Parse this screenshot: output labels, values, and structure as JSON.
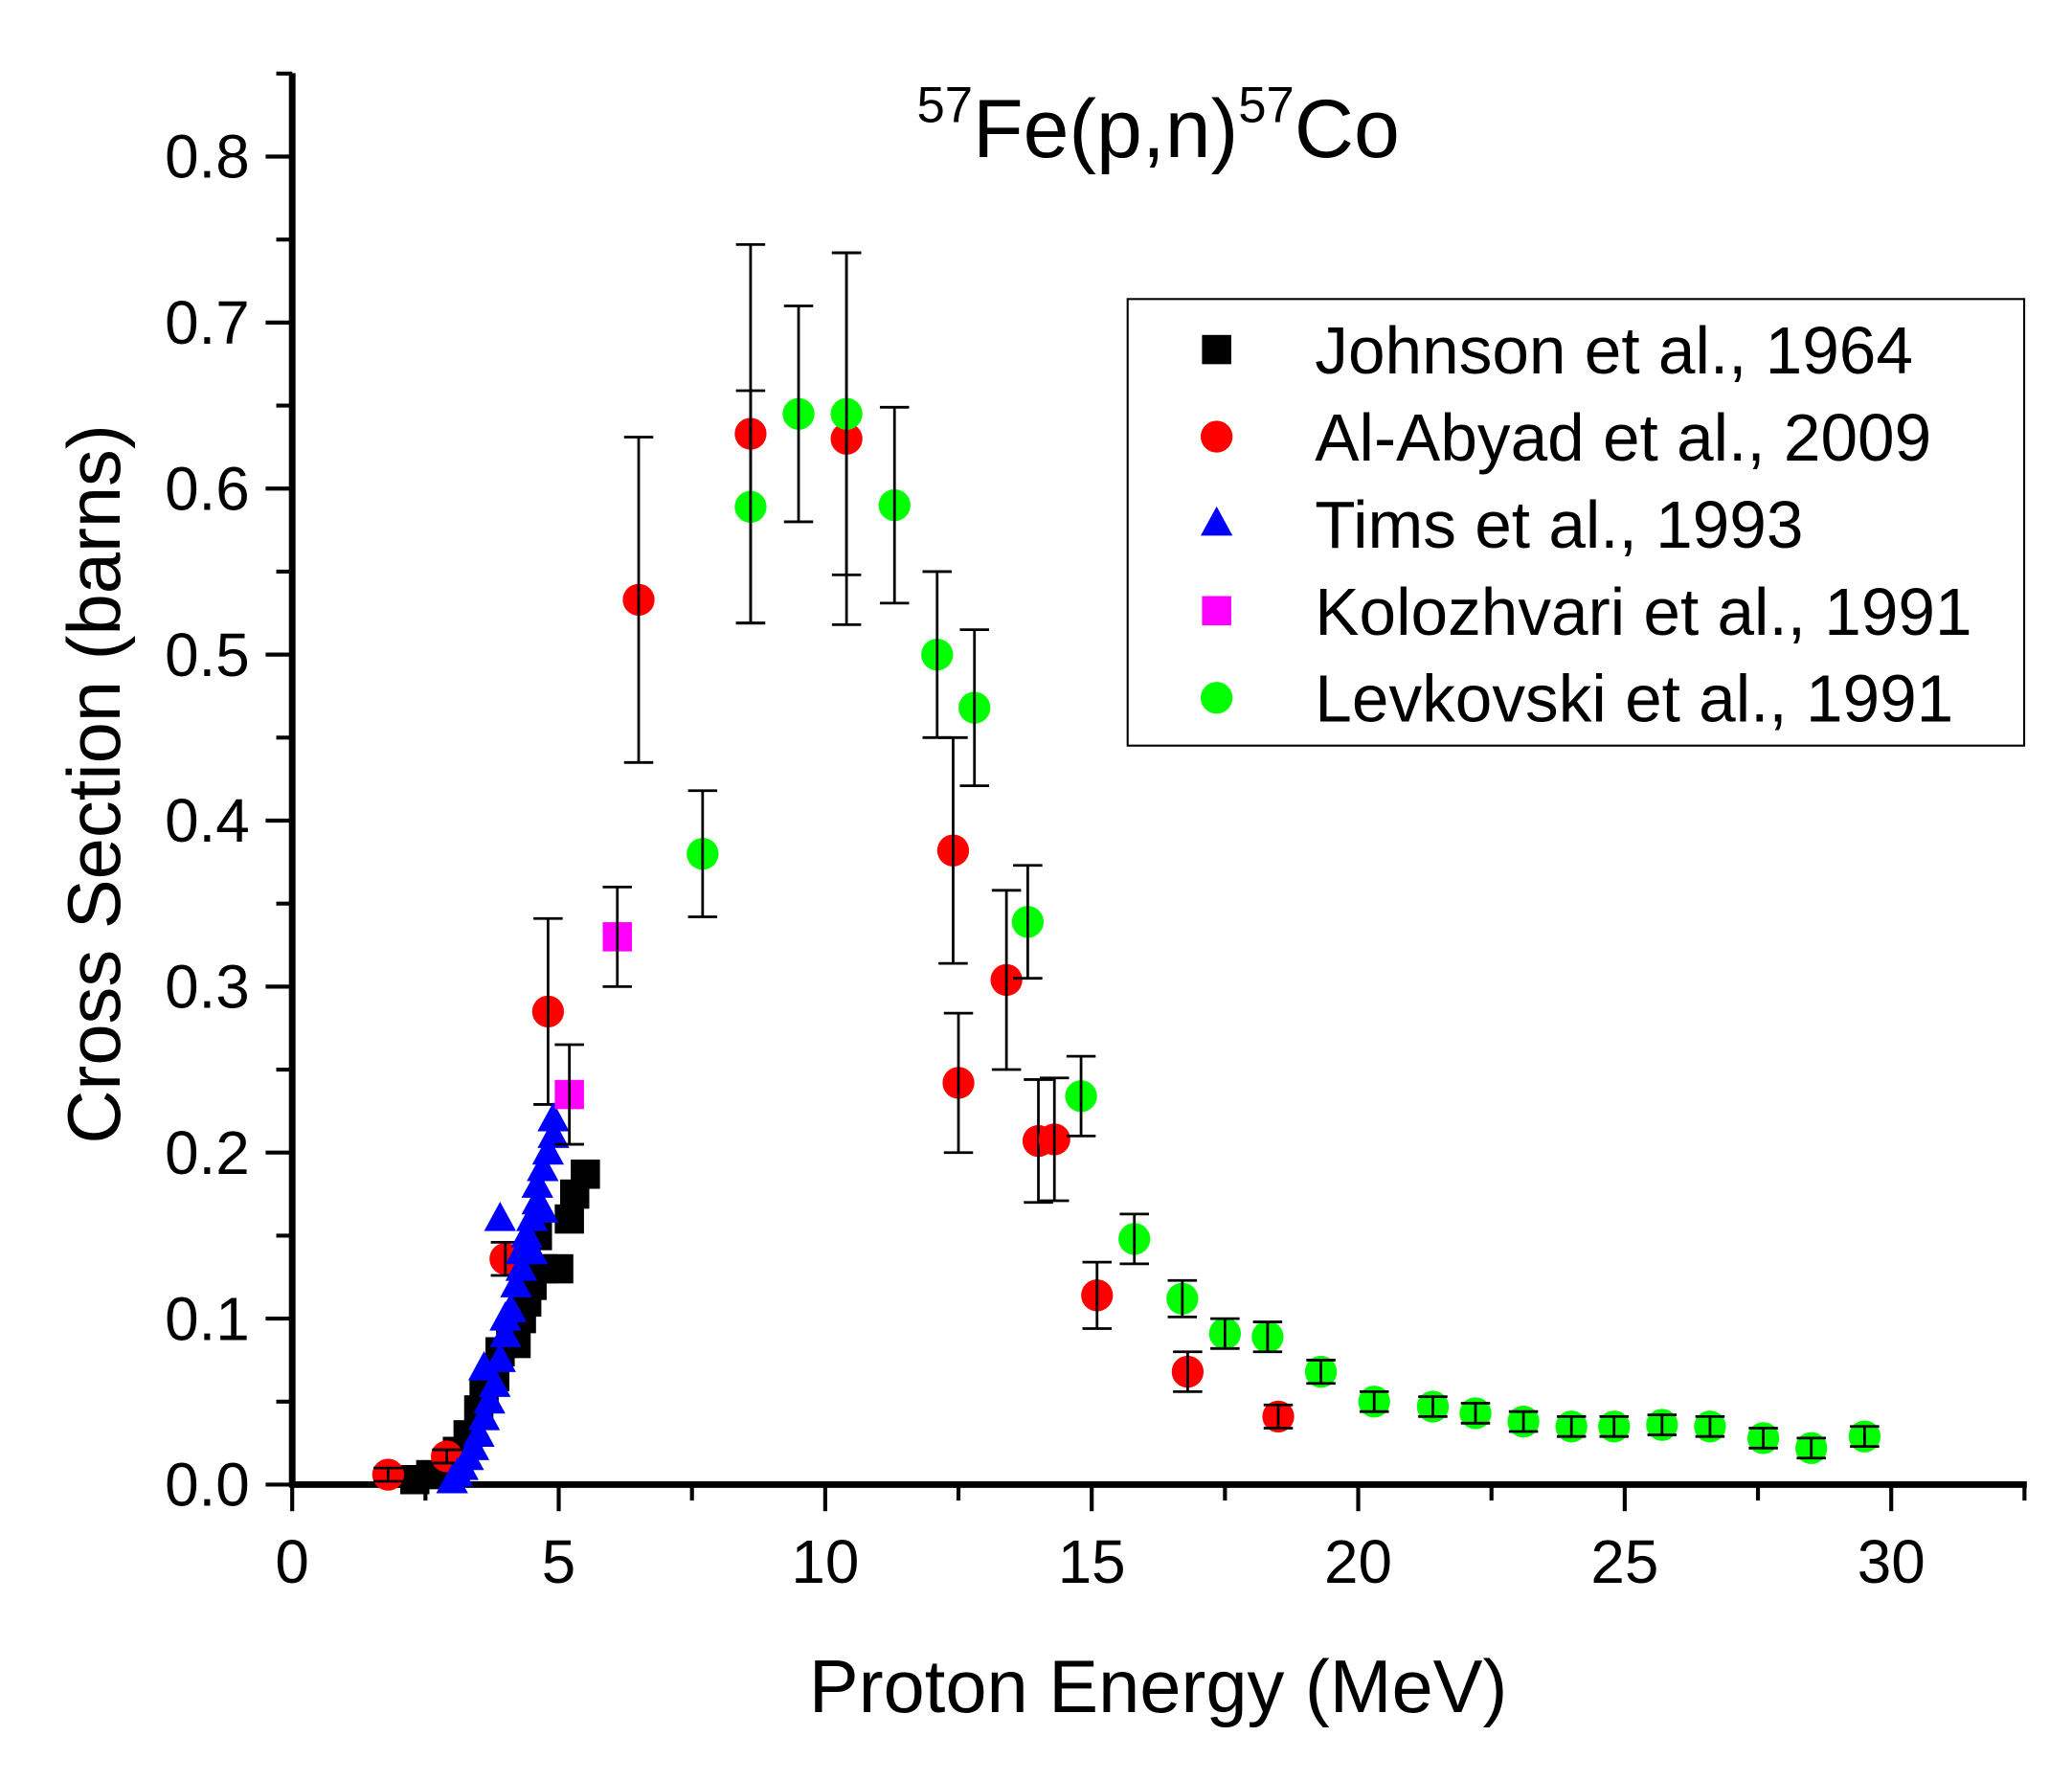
{
  "chart_data": {
    "type": "scatter",
    "title": {
      "pre_sup": "57",
      "mid": "Fe(p,n)",
      "post_sup": "57",
      "end": "Co"
    },
    "xlabel": "Proton Energy (MeV)",
    "ylabel": "Cross Section (barns)",
    "xlim": [
      0,
      32.5
    ],
    "ylim": [
      0,
      0.85
    ],
    "xticks": [
      0,
      5,
      10,
      15,
      20,
      25,
      30
    ],
    "xtick_labels": [
      "0",
      "5",
      "10",
      "15",
      "20",
      "25",
      "30"
    ],
    "yticks": [
      0,
      0.1,
      0.2,
      0.3,
      0.4,
      0.5,
      0.6,
      0.7,
      0.8
    ],
    "ytick_labels": [
      "0.0",
      "0.1",
      "0.2",
      "0.3",
      "0.4",
      "0.5",
      "0.6",
      "0.7",
      "0.8"
    ],
    "grid": false,
    "legend_placement": "top-right",
    "series": [
      {
        "name": "Johnson et al., 1964",
        "marker": "square",
        "color": "#000000",
        "points": [
          [
            2.3,
            0.003,
            0
          ],
          [
            2.6,
            0.006,
            0
          ],
          [
            2.9,
            0.012,
            0
          ],
          [
            3.1,
            0.02,
            0
          ],
          [
            3.3,
            0.03,
            0
          ],
          [
            3.5,
            0.045,
            0
          ],
          [
            3.6,
            0.055,
            0
          ],
          [
            3.8,
            0.065,
            0
          ],
          [
            3.9,
            0.08,
            0
          ],
          [
            4.1,
            0.09,
            0
          ],
          [
            4.2,
            0.085,
            0
          ],
          [
            4.3,
            0.1,
            0
          ],
          [
            4.4,
            0.11,
            0
          ],
          [
            4.5,
            0.12,
            0
          ],
          [
            4.6,
            0.15,
            0
          ],
          [
            4.7,
            0.13,
            0
          ],
          [
            5.0,
            0.13,
            0
          ],
          [
            5.2,
            0.16,
            0
          ],
          [
            5.3,
            0.175,
            0
          ],
          [
            5.5,
            0.187,
            0
          ]
        ]
      },
      {
        "name": "Al-Abyad et al., 2009",
        "marker": "circle",
        "color": "#ff0000",
        "points": [
          [
            1.8,
            0.006,
            0.004
          ],
          [
            2.9,
            0.017,
            0.004
          ],
          [
            4.0,
            0.136,
            0.01
          ],
          [
            4.8,
            0.285,
            0.056
          ],
          [
            6.5,
            0.533,
            0.098
          ],
          [
            8.6,
            0.633,
            0.114
          ],
          [
            10.4,
            0.63,
            0.112
          ],
          [
            12.4,
            0.382,
            0.068
          ],
          [
            12.5,
            0.242,
            0.042
          ],
          [
            13.4,
            0.304,
            0.054
          ],
          [
            14.0,
            0.207,
            0.037
          ],
          [
            14.3,
            0.208,
            0.037
          ],
          [
            15.1,
            0.114,
            0.02
          ],
          [
            16.8,
            0.068,
            0.012
          ],
          [
            18.5,
            0.041,
            0.007
          ]
        ]
      },
      {
        "name": "Tims et al., 1993",
        "marker": "triangle",
        "color": "#0000ff",
        "points": [
          [
            3.0,
            0.002,
            0
          ],
          [
            3.1,
            0.006,
            0
          ],
          [
            3.2,
            0.01,
            0
          ],
          [
            3.3,
            0.016,
            0
          ],
          [
            3.4,
            0.022,
            0
          ],
          [
            3.5,
            0.03,
            0
          ],
          [
            3.6,
            0.04,
            0
          ],
          [
            3.7,
            0.05,
            0
          ],
          [
            3.8,
            0.06,
            0
          ],
          [
            3.9,
            0.075,
            0
          ],
          [
            4.0,
            0.09,
            0
          ],
          [
            4.0,
            0.1,
            0
          ],
          [
            4.1,
            0.105,
            0
          ],
          [
            4.2,
            0.12,
            0
          ],
          [
            4.3,
            0.13,
            0
          ],
          [
            4.3,
            0.14,
            0
          ],
          [
            4.4,
            0.15,
            0
          ],
          [
            4.5,
            0.16,
            0
          ],
          [
            4.6,
            0.17,
            0
          ],
          [
            4.6,
            0.18,
            0
          ],
          [
            4.7,
            0.19,
            0
          ],
          [
            4.8,
            0.2,
            0
          ],
          [
            4.9,
            0.21,
            0
          ],
          [
            4.9,
            0.22,
            0
          ],
          [
            3.9,
            0.16,
            0
          ],
          [
            3.6,
            0.07,
            0
          ],
          [
            4.5,
            0.14,
            0
          ],
          [
            4.7,
            0.165,
            0
          ]
        ]
      },
      {
        "name": "Kolozhvari et al., 1991",
        "marker": "square",
        "color": "#ff00ff",
        "points": [
          [
            5.2,
            0.235,
            0.03
          ],
          [
            6.1,
            0.33,
            0.03
          ]
        ]
      },
      {
        "name": "Levkovski et al., 1991",
        "marker": "circle",
        "color": "#00ff00",
        "points": [
          [
            7.7,
            0.38,
            0.038
          ],
          [
            8.6,
            0.589,
            0.07
          ],
          [
            9.5,
            0.645,
            0.065
          ],
          [
            10.4,
            0.645,
            0.097
          ],
          [
            11.3,
            0.59,
            0.059
          ],
          [
            12.1,
            0.5,
            0.05
          ],
          [
            12.8,
            0.468,
            0.047
          ],
          [
            13.8,
            0.339,
            0.034
          ],
          [
            14.8,
            0.234,
            0.024
          ],
          [
            15.8,
            0.148,
            0.015
          ],
          [
            16.7,
            0.112,
            0.011
          ],
          [
            17.5,
            0.091,
            0.009
          ],
          [
            18.3,
            0.089,
            0.009
          ],
          [
            19.3,
            0.068,
            0.007
          ],
          [
            20.3,
            0.05,
            0.006
          ],
          [
            21.4,
            0.047,
            0.006
          ],
          [
            22.2,
            0.043,
            0.006
          ],
          [
            23.1,
            0.038,
            0.006
          ],
          [
            24.0,
            0.035,
            0.006
          ],
          [
            24.8,
            0.035,
            0.006
          ],
          [
            25.7,
            0.036,
            0.006
          ],
          [
            26.6,
            0.035,
            0.006
          ],
          [
            27.6,
            0.028,
            0.006
          ],
          [
            28.5,
            0.022,
            0.006
          ],
          [
            29.5,
            0.029,
            0.006
          ]
        ]
      }
    ]
  }
}
